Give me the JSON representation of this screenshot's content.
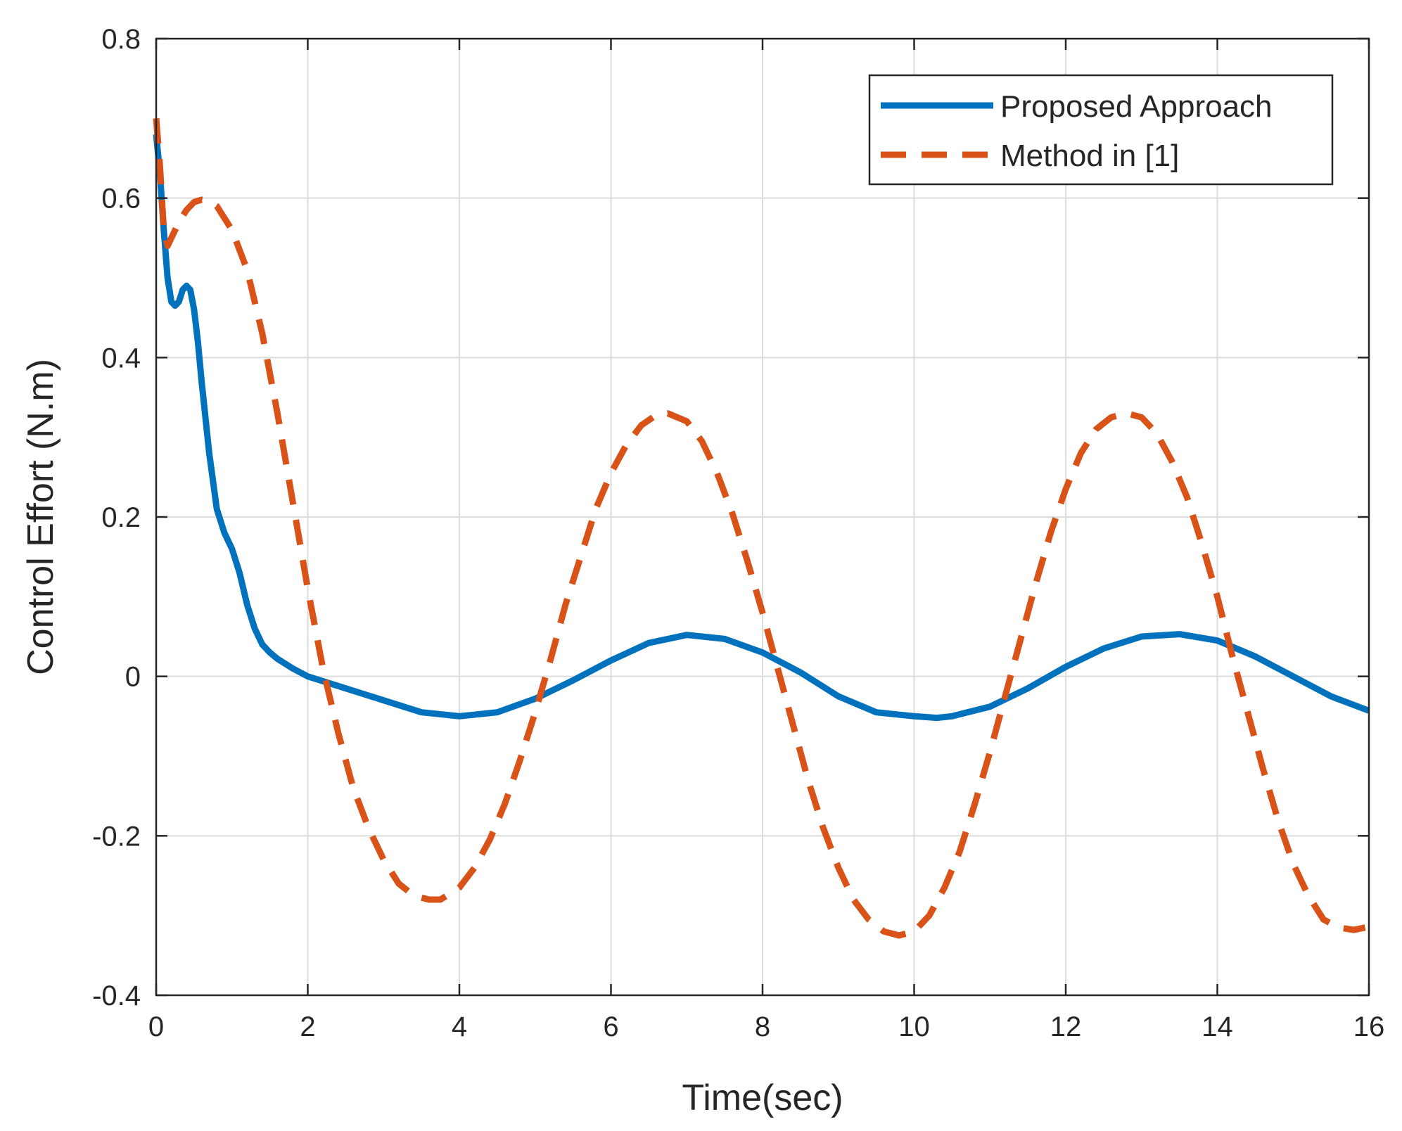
{
  "chart_data": {
    "type": "line",
    "title": "",
    "xlabel": "Time(sec)",
    "ylabel": "Control Effort (N.m)",
    "xlim": [
      0,
      16
    ],
    "ylim": [
      -0.4,
      0.8
    ],
    "xticks": [
      0,
      2,
      4,
      6,
      8,
      10,
      12,
      14,
      16
    ],
    "yticks": [
      -0.4,
      -0.2,
      0,
      0.2,
      0.4,
      0.6,
      0.8
    ],
    "xtick_labels": [
      "0",
      "2",
      "4",
      "6",
      "8",
      "10",
      "12",
      "14",
      "16"
    ],
    "ytick_labels": [
      "-0.4",
      "-0.2",
      "0",
      "0.2",
      "0.4",
      "0.6",
      "0.8"
    ],
    "grid": true,
    "legend_position": "top-right",
    "series": [
      {
        "name": "Proposed Approach",
        "color": "#0072BD",
        "style": "solid",
        "x": [
          0,
          0.05,
          0.1,
          0.15,
          0.2,
          0.25,
          0.3,
          0.35,
          0.4,
          0.45,
          0.5,
          0.55,
          0.6,
          0.7,
          0.8,
          0.9,
          1.0,
          1.1,
          1.2,
          1.3,
          1.4,
          1.5,
          1.6,
          1.8,
          2.0,
          2.2,
          2.5,
          3.0,
          3.5,
          4.0,
          4.5,
          5.0,
          5.5,
          6.0,
          6.5,
          7.0,
          7.5,
          8.0,
          8.5,
          9.0,
          9.5,
          10.0,
          10.3,
          10.5,
          11.0,
          11.5,
          12.0,
          12.5,
          13.0,
          13.5,
          14.0,
          14.5,
          15.0,
          15.5,
          16.0
        ],
        "y": [
          0.68,
          0.63,
          0.56,
          0.5,
          0.47,
          0.465,
          0.47,
          0.485,
          0.49,
          0.485,
          0.46,
          0.42,
          0.37,
          0.28,
          0.21,
          0.18,
          0.16,
          0.13,
          0.09,
          0.06,
          0.04,
          0.03,
          0.022,
          0.01,
          0.0,
          -0.006,
          -0.015,
          -0.03,
          -0.045,
          -0.05,
          -0.045,
          -0.028,
          -0.005,
          0.02,
          0.042,
          0.052,
          0.047,
          0.03,
          0.005,
          -0.025,
          -0.045,
          -0.05,
          -0.052,
          -0.05,
          -0.038,
          -0.015,
          0.012,
          0.035,
          0.05,
          0.053,
          0.045,
          0.025,
          0.0,
          -0.025,
          -0.043
        ]
      },
      {
        "name": "Method in [1]",
        "color": "#D95319",
        "style": "dashed",
        "x": [
          0,
          0.05,
          0.1,
          0.15,
          0.2,
          0.3,
          0.4,
          0.5,
          0.6,
          0.7,
          0.8,
          1.0,
          1.2,
          1.4,
          1.6,
          1.8,
          2.0,
          2.2,
          2.4,
          2.6,
          2.8,
          3.0,
          3.2,
          3.4,
          3.6,
          3.75,
          4.0,
          4.2,
          4.4,
          4.6,
          4.8,
          5.0,
          5.2,
          5.4,
          5.6,
          5.8,
          6.0,
          6.2,
          6.4,
          6.6,
          6.75,
          7.0,
          7.2,
          7.4,
          7.6,
          7.8,
          8.0,
          8.2,
          8.4,
          8.6,
          8.8,
          9.0,
          9.2,
          9.4,
          9.6,
          9.8,
          10.0,
          10.2,
          10.4,
          10.6,
          10.8,
          11.0,
          11.2,
          11.4,
          11.6,
          11.8,
          12.0,
          12.2,
          12.4,
          12.6,
          12.8,
          13.0,
          13.2,
          13.4,
          13.6,
          13.8,
          14.0,
          14.2,
          14.4,
          14.6,
          14.8,
          15.0,
          15.2,
          15.4,
          15.6,
          15.8,
          15.95
        ],
        "y": [
          0.7,
          0.64,
          0.56,
          0.54,
          0.55,
          0.57,
          0.585,
          0.595,
          0.598,
          0.596,
          0.59,
          0.56,
          0.51,
          0.43,
          0.33,
          0.22,
          0.11,
          0.01,
          -0.07,
          -0.14,
          -0.19,
          -0.23,
          -0.26,
          -0.275,
          -0.28,
          -0.28,
          -0.265,
          -0.24,
          -0.205,
          -0.16,
          -0.105,
          -0.045,
          0.02,
          0.09,
          0.15,
          0.21,
          0.255,
          0.29,
          0.315,
          0.328,
          0.33,
          0.32,
          0.295,
          0.255,
          0.205,
          0.145,
          0.08,
          0.01,
          -0.06,
          -0.13,
          -0.19,
          -0.24,
          -0.28,
          -0.305,
          -0.32,
          -0.325,
          -0.32,
          -0.3,
          -0.265,
          -0.22,
          -0.16,
          -0.095,
          -0.025,
          0.045,
          0.115,
          0.18,
          0.235,
          0.28,
          0.31,
          0.325,
          0.33,
          0.325,
          0.305,
          0.27,
          0.225,
          0.165,
          0.1,
          0.025,
          -0.045,
          -0.115,
          -0.18,
          -0.235,
          -0.275,
          -0.305,
          -0.315,
          -0.318,
          -0.315
        ]
      }
    ]
  }
}
